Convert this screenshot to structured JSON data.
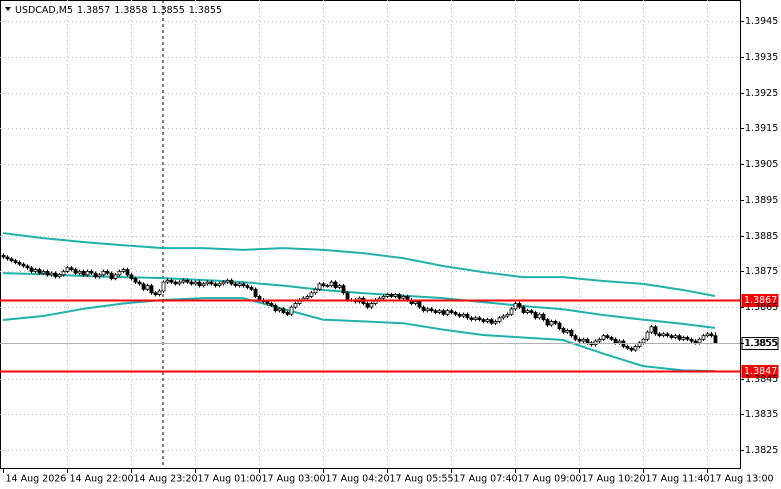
{
  "chart_data": {
    "type": "candlestick",
    "symbol": "USDCAD,M5",
    "categories": [
      "14 Aug 2026",
      null,
      null,
      null,
      null,
      null,
      null,
      null,
      null,
      null,
      null,
      null,
      null,
      null,
      null,
      null,
      "14 Aug 22:00",
      null,
      null,
      null,
      null,
      null,
      null,
      null,
      null,
      null,
      null,
      null,
      null,
      null,
      null,
      null,
      "14 Aug 23:20",
      null,
      null,
      null,
      null,
      null,
      null,
      null,
      null,
      null,
      null,
      null,
      null,
      null,
      null,
      null,
      "17 Aug 01:00",
      null,
      null,
      null,
      null,
      null,
      null,
      null,
      null,
      null,
      null,
      null,
      null,
      null,
      null,
      null,
      "17 Aug 03:00",
      null,
      null,
      null,
      null,
      null,
      null,
      null,
      null,
      null,
      null,
      null,
      null,
      null,
      null,
      null,
      "17 Aug 04:20",
      null,
      null,
      null,
      null,
      null,
      null,
      null,
      null,
      null,
      null,
      null,
      null,
      null,
      null,
      null,
      "17 Aug 05:55",
      null,
      null,
      null,
      null,
      null,
      null,
      null,
      null,
      null,
      null,
      null,
      null,
      null,
      null,
      null,
      "17 Aug 07:40",
      null,
      null,
      null,
      null,
      null,
      null,
      null,
      null,
      null,
      null,
      null,
      null,
      null,
      null,
      null,
      "17 Aug 09:00",
      null,
      null,
      null,
      null,
      null,
      null,
      null,
      null,
      null,
      null,
      null,
      null,
      null,
      null,
      null,
      "17 Aug 10:20",
      null,
      null,
      null,
      null,
      null,
      null,
      null,
      null,
      null,
      null,
      null,
      null,
      null,
      null,
      null,
      "17 Aug 11:40",
      null,
      null,
      null,
      null,
      null,
      null,
      null,
      null,
      null,
      null,
      null,
      null,
      null,
      null,
      null,
      "17 Aug 13:00",
      null,
      null
    ],
    "open": [
      1.38795,
      1.3879,
      1.38785,
      1.3878,
      1.38775,
      1.3877,
      1.38765,
      1.3876,
      1.3875,
      1.38755,
      1.38745,
      1.3875,
      1.3874,
      1.38745,
      1.38735,
      1.3874,
      1.3875,
      1.3876,
      1.38755,
      1.38745,
      1.3875,
      1.3874,
      1.3875,
      1.38745,
      1.38735,
      1.3874,
      1.3875,
      1.38745,
      1.3873,
      1.3874,
      1.3875,
      1.38755,
      1.3874,
      1.3873,
      1.3872,
      1.38715,
      1.387,
      1.3871,
      1.3869,
      1.38685,
      1.38695,
      1.3872,
      1.38725,
      1.3872,
      1.38715,
      1.3872,
      1.38725,
      1.3872,
      1.38715,
      1.3872,
      1.3871,
      1.38715,
      1.3872,
      1.38715,
      1.3871,
      1.38715,
      1.3872,
      1.38725,
      1.38715,
      1.3871,
      1.38715,
      1.3871,
      1.38705,
      1.387,
      1.3868,
      1.3867,
      1.38665,
      1.3866,
      1.38655,
      1.3864,
      1.38645,
      1.38635,
      1.3863,
      1.3865,
      1.3866,
      1.3867,
      1.38675,
      1.3868,
      1.3869,
      1.387,
      1.38715,
      1.3871,
      1.3871,
      1.3872,
      1.38705,
      1.3871,
      1.3869,
      1.3867,
      1.3867,
      1.38665,
      1.38675,
      1.3866,
      1.3865,
      1.3866,
      1.3867,
      1.38675,
      1.3868,
      1.38685,
      1.3868,
      1.38685,
      1.38675,
      1.3868,
      1.3867,
      1.3866,
      1.38665,
      1.3865,
      1.3864,
      1.38645,
      1.3864,
      1.38635,
      1.3864,
      1.3863,
      1.3864,
      1.38635,
      1.3863,
      1.38625,
      1.3863,
      1.3862,
      1.38615,
      1.3862,
      1.38615,
      1.3861,
      1.38615,
      1.38605,
      1.3861,
      1.3862,
      1.38625,
      1.3863,
      1.38645,
      1.3866,
      1.3865,
      1.38635,
      1.3864,
      1.38635,
      1.3862,
      1.3863,
      1.38615,
      1.386,
      1.3861,
      1.38605,
      1.3859,
      1.3858,
      1.38585,
      1.3857,
      1.3856,
      1.38555,
      1.3856,
      1.3855,
      1.38545,
      1.38555,
      1.3856,
      1.3857,
      1.38565,
      1.3856,
      1.3855,
      1.38555,
      1.3854,
      1.38535,
      1.3853,
      1.3854,
      1.3855,
      1.3856,
      1.3858,
      1.38595,
      1.38575,
      1.3857,
      1.38575,
      1.3857,
      1.38565,
      1.3857,
      1.3856,
      1.38565,
      1.3856,
      1.38555,
      1.3855,
      1.3856,
      1.3857,
      1.38575,
      1.3857
    ],
    "high": [
      1.388,
      1.38795,
      1.3879,
      1.38785,
      1.3878,
      1.38775,
      1.3877,
      1.38765,
      1.3876,
      1.3876,
      1.38755,
      1.38755,
      1.3875,
      1.3875,
      1.38745,
      1.38755,
      1.38765,
      1.38765,
      1.3876,
      1.38755,
      1.38755,
      1.38755,
      1.38755,
      1.3875,
      1.38745,
      1.38755,
      1.38755,
      1.3875,
      1.38745,
      1.38755,
      1.3876,
      1.3876,
      1.38745,
      1.38735,
      1.38725,
      1.3872,
      1.38715,
      1.38715,
      1.38695,
      1.387,
      1.38725,
      1.3873,
      1.3873,
      1.38725,
      1.38725,
      1.3873,
      1.3873,
      1.38725,
      1.38725,
      1.38725,
      1.3872,
      1.38725,
      1.38725,
      1.3872,
      1.3872,
      1.38725,
      1.3873,
      1.3873,
      1.3872,
      1.3872,
      1.3872,
      1.38715,
      1.3871,
      1.38705,
      1.38685,
      1.38675,
      1.3867,
      1.38665,
      1.3866,
      1.3865,
      1.3865,
      1.3864,
      1.38655,
      1.38665,
      1.38675,
      1.3868,
      1.38685,
      1.38695,
      1.38705,
      1.3872,
      1.3872,
      1.38715,
      1.38725,
      1.38725,
      1.38715,
      1.38715,
      1.38695,
      1.38675,
      1.38675,
      1.3868,
      1.3868,
      1.38665,
      1.38665,
      1.38675,
      1.3868,
      1.38685,
      1.3869,
      1.3869,
      1.3869,
      1.3869,
      1.38685,
      1.38685,
      1.38675,
      1.3867,
      1.3867,
      1.38655,
      1.3865,
      1.3865,
      1.38645,
      1.38645,
      1.38645,
      1.38645,
      1.38645,
      1.3864,
      1.38635,
      1.38635,
      1.38635,
      1.38625,
      1.38625,
      1.38625,
      1.3862,
      1.3862,
      1.3862,
      1.38615,
      1.38625,
      1.3863,
      1.38635,
      1.3865,
      1.38665,
      1.38665,
      1.38655,
      1.38645,
      1.38645,
      1.3864,
      1.38635,
      1.38635,
      1.3862,
      1.38615,
      1.38615,
      1.3861,
      1.38595,
      1.3859,
      1.3859,
      1.38575,
      1.38565,
      1.38565,
      1.38565,
      1.38555,
      1.3856,
      1.38565,
      1.38575,
      1.38575,
      1.3857,
      1.38565,
      1.3856,
      1.3856,
      1.38545,
      1.3854,
      1.38545,
      1.38555,
      1.38565,
      1.38585,
      1.386,
      1.386,
      1.3858,
      1.3858,
      1.3858,
      1.38575,
      1.38575,
      1.38575,
      1.3857,
      1.3857,
      1.38565,
      1.3856,
      1.38565,
      1.38575,
      1.3858,
      1.3858,
      1.3858
    ],
    "low": [
      1.38785,
      1.3878,
      1.38775,
      1.3877,
      1.38765,
      1.3876,
      1.38755,
      1.38745,
      1.38745,
      1.3874,
      1.3874,
      1.38735,
      1.38735,
      1.3873,
      1.3873,
      1.38735,
      1.38745,
      1.3875,
      1.3874,
      1.3874,
      1.38735,
      1.38735,
      1.3874,
      1.3873,
      1.3873,
      1.38735,
      1.3874,
      1.38725,
      1.38725,
      1.38735,
      1.38745,
      1.38735,
      1.38725,
      1.38715,
      1.3871,
      1.38695,
      1.38695,
      1.38685,
      1.3868,
      1.3868,
      1.3869,
      1.38715,
      1.38715,
      1.3871,
      1.3871,
      1.38715,
      1.38715,
      1.3871,
      1.3871,
      1.38705,
      1.38705,
      1.3871,
      1.3871,
      1.38705,
      1.38705,
      1.3871,
      1.38715,
      1.3871,
      1.38705,
      1.38705,
      1.38705,
      1.387,
      1.38695,
      1.38675,
      1.38665,
      1.3866,
      1.38655,
      1.3865,
      1.38635,
      1.38635,
      1.3863,
      1.38625,
      1.38625,
      1.38645,
      1.38655,
      1.38665,
      1.3867,
      1.38675,
      1.38685,
      1.38695,
      1.38705,
      1.38705,
      1.38705,
      1.387,
      1.387,
      1.38685,
      1.38665,
      1.38665,
      1.3866,
      1.3866,
      1.38655,
      1.38645,
      1.38645,
      1.38655,
      1.38665,
      1.3867,
      1.38675,
      1.38675,
      1.38675,
      1.3867,
      1.3867,
      1.38665,
      1.38655,
      1.38655,
      1.38645,
      1.38635,
      1.38635,
      1.38635,
      1.3863,
      1.3863,
      1.38625,
      1.38625,
      1.3863,
      1.38625,
      1.3862,
      1.3862,
      1.38615,
      1.3861,
      1.3861,
      1.3861,
      1.38605,
      1.38605,
      1.386,
      1.386,
      1.38605,
      1.38615,
      1.3862,
      1.38625,
      1.3864,
      1.38645,
      1.3863,
      1.3863,
      1.3863,
      1.38615,
      1.38615,
      1.3861,
      1.38595,
      1.38595,
      1.386,
      1.38585,
      1.38575,
      1.38575,
      1.38565,
      1.38555,
      1.3855,
      1.3855,
      1.38545,
      1.3854,
      1.3854,
      1.3855,
      1.38555,
      1.3856,
      1.38555,
      1.38545,
      1.38545,
      1.38535,
      1.3853,
      1.38525,
      1.38525,
      1.38535,
      1.38545,
      1.38555,
      1.38575,
      1.3857,
      1.38565,
      1.38565,
      1.38565,
      1.3856,
      1.3856,
      1.38555,
      1.38555,
      1.38555,
      1.3855,
      1.38545,
      1.38545,
      1.38555,
      1.38565,
      1.38565,
      1.3855
    ],
    "close": [
      1.3879,
      1.38785,
      1.3878,
      1.38775,
      1.3877,
      1.38765,
      1.3876,
      1.3875,
      1.38755,
      1.38745,
      1.3875,
      1.3874,
      1.38745,
      1.38735,
      1.3874,
      1.3875,
      1.3876,
      1.38755,
      1.38745,
      1.3875,
      1.3874,
      1.3875,
      1.38745,
      1.38735,
      1.3874,
      1.3875,
      1.38745,
      1.3873,
      1.3874,
      1.3875,
      1.38755,
      1.3874,
      1.3873,
      1.3872,
      1.38715,
      1.387,
      1.3871,
      1.3869,
      1.38685,
      1.38695,
      1.3872,
      1.38725,
      1.3872,
      1.38715,
      1.3872,
      1.38725,
      1.3872,
      1.38715,
      1.3872,
      1.3871,
      1.38715,
      1.3872,
      1.38715,
      1.3871,
      1.38715,
      1.3872,
      1.38725,
      1.38715,
      1.3871,
      1.38715,
      1.3871,
      1.38705,
      1.387,
      1.3868,
      1.3867,
      1.38665,
      1.3866,
      1.38655,
      1.3864,
      1.38645,
      1.38635,
      1.3863,
      1.3865,
      1.3866,
      1.3867,
      1.38675,
      1.3868,
      1.3869,
      1.387,
      1.38715,
      1.3871,
      1.3871,
      1.3872,
      1.38705,
      1.3871,
      1.3869,
      1.3867,
      1.3867,
      1.38665,
      1.38675,
      1.3866,
      1.3865,
      1.3866,
      1.3867,
      1.38675,
      1.3868,
      1.38685,
      1.3868,
      1.38685,
      1.38675,
      1.3868,
      1.3867,
      1.3866,
      1.38665,
      1.3865,
      1.3864,
      1.38645,
      1.3864,
      1.38635,
      1.3864,
      1.3863,
      1.3864,
      1.38635,
      1.3863,
      1.38625,
      1.3863,
      1.3862,
      1.38615,
      1.3862,
      1.38615,
      1.3861,
      1.38615,
      1.38605,
      1.3861,
      1.3862,
      1.38625,
      1.3863,
      1.38645,
      1.3866,
      1.3865,
      1.38635,
      1.3864,
      1.38635,
      1.3862,
      1.3863,
      1.38615,
      1.386,
      1.3861,
      1.38605,
      1.3859,
      1.3858,
      1.38585,
      1.3857,
      1.3856,
      1.38555,
      1.3856,
      1.3855,
      1.38545,
      1.38555,
      1.3856,
      1.3857,
      1.38565,
      1.3856,
      1.3855,
      1.38555,
      1.3854,
      1.38535,
      1.3853,
      1.3854,
      1.3855,
      1.3856,
      1.3858,
      1.38595,
      1.38575,
      1.3857,
      1.38575,
      1.3857,
      1.38565,
      1.3857,
      1.3856,
      1.38565,
      1.3856,
      1.38555,
      1.3855,
      1.3856,
      1.3857,
      1.38575,
      1.3857,
      1.3855
    ],
    "up_color": "#ffffff",
    "down_color": "#000000",
    "wick_color": "#000000",
    "bands": [
      {
        "color": "#20b2aa",
        "x": [
          0,
          10,
          20,
          30,
          40,
          50,
          60,
          70,
          80,
          90,
          100,
          110,
          120,
          130,
          140,
          150,
          160,
          170,
          178
        ],
        "values": [
          1.38857,
          1.38843,
          1.38832,
          1.38823,
          1.38815,
          1.38815,
          1.3881,
          1.38815,
          1.3881,
          1.38801,
          1.38787,
          1.38765,
          1.38748,
          1.38734,
          1.38734,
          1.38723,
          1.38715,
          1.38698,
          1.38681
        ]
      },
      {
        "color": "#20b2aa",
        "x": [
          0,
          10,
          20,
          30,
          40,
          50,
          60,
          70,
          80,
          90,
          100,
          110,
          120,
          130,
          140,
          150,
          160,
          170,
          178
        ],
        "values": [
          1.38745,
          1.38742,
          1.38737,
          1.38734,
          1.38731,
          1.38726,
          1.3872,
          1.3871,
          1.38698,
          1.38689,
          1.38682,
          1.38675,
          1.38664,
          1.38653,
          1.38644,
          1.38628,
          1.38615,
          1.38603,
          1.38592
        ]
      },
      {
        "color": "#20b2aa",
        "x": [
          0,
          10,
          20,
          30,
          40,
          50,
          60,
          70,
          80,
          90,
          100,
          110,
          120,
          130,
          140,
          150,
          160,
          170,
          178
        ],
        "values": [
          1.38614,
          1.38625,
          1.38645,
          1.3866,
          1.3867,
          1.38675,
          1.38675,
          1.38645,
          1.38615,
          1.3861,
          1.38605,
          1.38587,
          1.38572,
          1.38565,
          1.38558,
          1.3852,
          1.38485,
          1.38473,
          1.38471
        ]
      }
    ],
    "hlines": [
      {
        "value": 1.3867,
        "color": "#ff0000"
      },
      {
        "value": 1.3847,
        "color": "#ff0000"
      }
    ],
    "ylim": [
      1.382,
      1.39509
    ],
    "yticks": [
      1.3825,
      1.3835,
      1.3845,
      1.3855,
      1.3865,
      1.3875,
      1.3885,
      1.3895,
      1.3905,
      1.3915,
      1.3925,
      1.3935,
      1.3945
    ],
    "grid": true
  }
}
